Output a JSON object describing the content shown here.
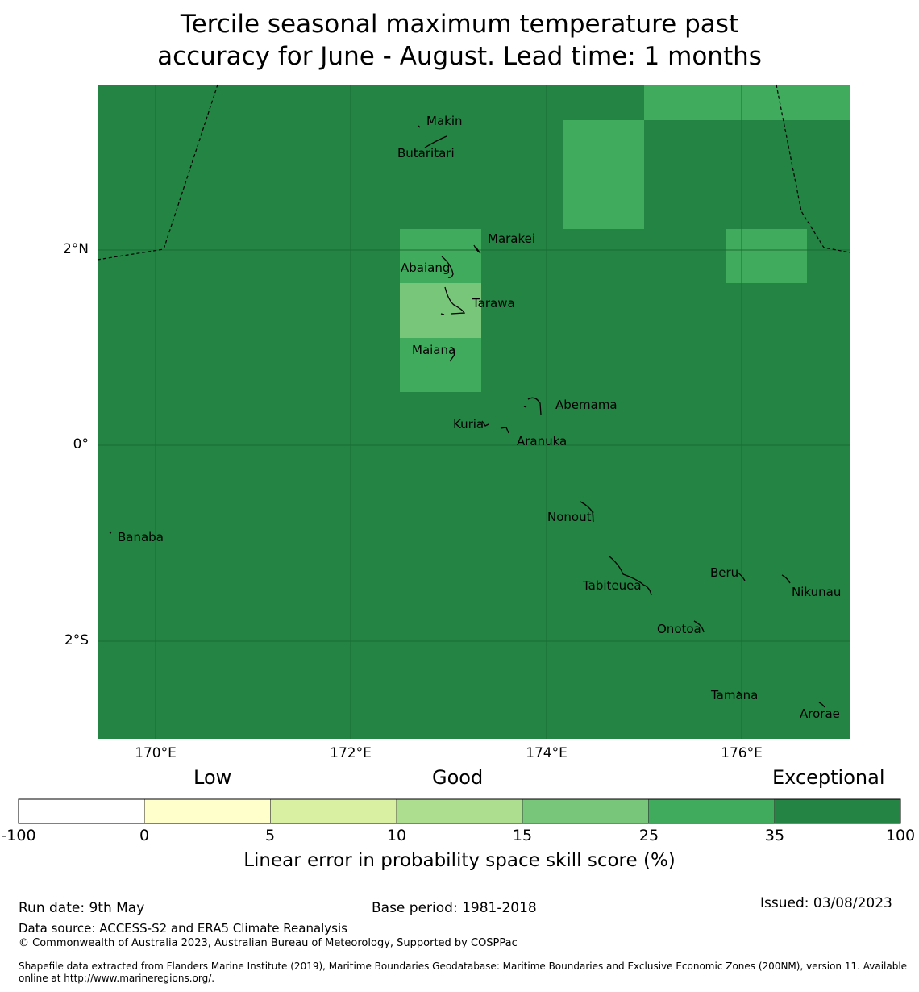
{
  "title_lines": [
    "Tercile seasonal maximum temperature past",
    "accuracy for June - August. Lead time: 1 months"
  ],
  "map": {
    "lat_labels": [
      "2°N",
      "0°",
      "2°S"
    ],
    "lon_labels": [
      "170°E",
      "172°E",
      "174°E",
      "176°E"
    ],
    "background_color": "#238443",
    "grid_color": "#1a6b33",
    "places": [
      "Makin",
      "Butaritari",
      "Marakei",
      "Abaiang",
      "Tarawa",
      "Maiana",
      "Abemama",
      "Kuria",
      "Aranuka",
      "Banaba",
      "Nonouti",
      "Tabiteuea",
      "Beru",
      "Nikunau",
      "Onotoa",
      "Tamana",
      "Arorae"
    ]
  },
  "legend": {
    "categories": [
      "Low",
      "Good",
      "Exceptional"
    ],
    "ticks": [
      "-100",
      "0",
      "5",
      "10",
      "15",
      "25",
      "35",
      "100"
    ],
    "colors": [
      "#ffffff",
      "#ffffcc",
      "#d9f0a3",
      "#addd8e",
      "#78c679",
      "#41ab5d",
      "#238443"
    ],
    "title": "Linear error in probability space skill score (%)"
  },
  "footer": {
    "run_date": "Run date: 9th May",
    "base_period": "Base period: 1981-2018",
    "issued": "Issued: 03/08/2023",
    "data_source": "Data source: ACCESS-S2 and ERA5 Climate Reanalysis",
    "copyright": "© Commonwealth of Australia 2023, Australian Bureau of Meteorology, Supported by COSPPac",
    "shapefile_line1": "Shapefile data extracted from Flanders Marine Institute (2019), Maritime Boundaries Geodatabase: Maritime Boundaries and Exclusive Economic Zones (200NM), version 11. Available",
    "shapefile_line2": "online at http://www.marineregions.org/."
  }
}
